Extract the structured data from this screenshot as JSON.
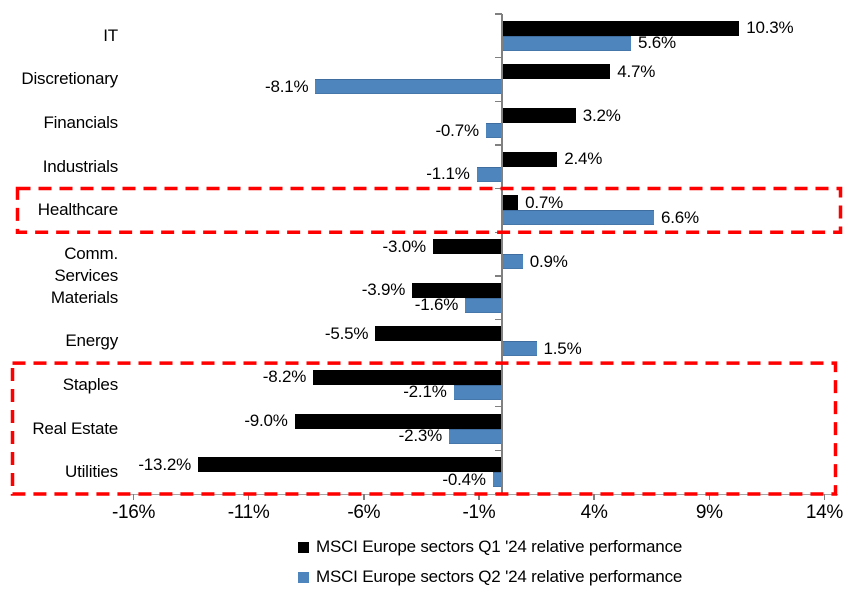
{
  "chart_data": {
    "type": "bar",
    "orientation": "horizontal",
    "title": "",
    "categories": [
      "IT",
      "Discretionary",
      "Financials",
      "Industrials",
      "Healthcare",
      "Comm. Services",
      "Materials",
      "Energy",
      "Staples",
      "Real Estate",
      "Utilities"
    ],
    "series": [
      {
        "name": "MSCI Europe sectors Q1 '24 relative performance",
        "color": "#000000",
        "values": [
          10.3,
          4.7,
          3.2,
          2.4,
          0.7,
          -3.0,
          -3.9,
          -5.5,
          -8.2,
          -9.0,
          -13.2
        ],
        "labels": [
          "10.3%",
          "4.7%",
          "3.2%",
          "2.4%",
          "0.7%",
          "-3.0%",
          "-3.9%",
          "-5.5%",
          "-8.2%",
          "-9.0%",
          "-13.2%"
        ]
      },
      {
        "name": "MSCI Europe sectors Q2 '24 relative performance",
        "color": "#4E85BC",
        "values": [
          5.6,
          -8.1,
          -0.7,
          -1.1,
          6.6,
          0.9,
          -1.6,
          1.5,
          -2.1,
          -2.3,
          -0.4
        ],
        "labels": [
          "5.6%",
          "-8.1%",
          "-0.7%",
          "-1.1%",
          "6.6%",
          "0.9%",
          "-1.6%",
          "1.5%",
          "-2.1%",
          "-2.3%",
          "-0.4%"
        ]
      }
    ],
    "x_axis": {
      "tick_values": [
        -16,
        -11,
        -6,
        -1,
        4,
        9,
        14
      ],
      "tick_labels": [
        "-16%",
        "-11%",
        "-6%",
        "-1%",
        "4%",
        "9%",
        "14%"
      ],
      "range": [
        -16.6,
        14.6
      ]
    },
    "grid": false,
    "value_labels": true,
    "legend": {
      "position": "bottom"
    },
    "highlights": [
      {
        "name": "healthcare-highlight-box",
        "categories": [
          "Healthcare"
        ],
        "color": "#FE0000",
        "style": "dashed"
      },
      {
        "name": "defensives-highlight-box",
        "categories": [
          "Staples",
          "Real Estate",
          "Utilities"
        ],
        "color": "#FE0000",
        "style": "dashed"
      }
    ]
  }
}
